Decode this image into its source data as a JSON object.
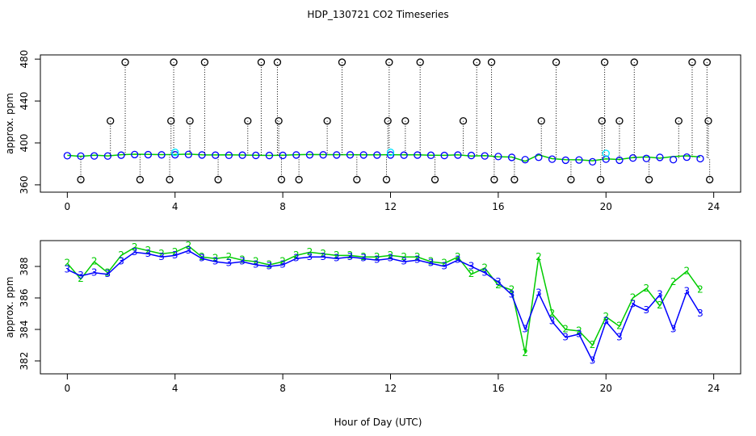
{
  "chart_data": [
    {
      "type": "scatter",
      "title": "HDP_130721  CO2 Timeseries",
      "ylabel": "approx. ppm",
      "xlim": [
        -1,
        25
      ],
      "ylim": [
        353,
        484
      ],
      "xticks": [
        0,
        4,
        8,
        12,
        16,
        20,
        24
      ],
      "yticks": [
        360,
        400,
        440,
        480
      ],
      "series": [
        {
          "color": "#00cc00",
          "lines": true,
          "x": [
            0,
            0.5,
            1,
            1.5,
            2,
            2.5,
            3,
            3.5,
            4,
            4.5,
            5,
            5.5,
            6,
            6.5,
            7,
            7.5,
            8,
            8.5,
            9,
            9.5,
            10,
            10.5,
            11,
            11.5,
            12,
            12.5,
            13,
            13.5,
            14,
            14.5,
            15,
            15.5,
            16,
            16.5,
            17,
            17.5,
            18,
            18.5,
            19,
            19.5,
            20,
            20.5,
            21,
            21.5,
            22,
            22.5,
            23,
            23.5
          ],
          "values": [
            388.2,
            387.2,
            388.3,
            387.6,
            388.7,
            389.2,
            389,
            388.8,
            388.9,
            389.3,
            388.6,
            388.5,
            388.6,
            388.4,
            388.3,
            388.1,
            388.3,
            388.7,
            388.9,
            388.8,
            388.7,
            388.7,
            388.6,
            388.6,
            388.7,
            388.6,
            388.6,
            388.3,
            388.2,
            388.6,
            387.5,
            387.9,
            386.8,
            386.5,
            382.5,
            388.6,
            385,
            384,
            383.9,
            383,
            384.8,
            384.2,
            386,
            386.6,
            385.5,
            387,
            387.7,
            386.5
          ]
        },
        {
          "color": "#0000ff",
          "marker": "circle",
          "x": [
            0,
            0.5,
            1,
            1.5,
            2,
            2.5,
            3,
            3.5,
            4,
            4.5,
            5,
            5.5,
            6,
            6.5,
            7,
            7.5,
            8,
            8.5,
            9,
            9.5,
            10,
            10.5,
            11,
            11.5,
            12,
            12.5,
            13,
            13.5,
            14,
            14.5,
            15,
            15.5,
            16,
            16.5,
            17,
            17.5,
            18,
            18.5,
            19,
            19.5,
            20,
            20.5,
            21,
            21.5,
            22,
            22.5,
            23,
            23.5
          ],
          "values": [
            387.8,
            387.4,
            387.6,
            387.5,
            388.3,
            388.9,
            388.8,
            388.6,
            388.7,
            389,
            388.5,
            388.3,
            388.2,
            388.3,
            388.1,
            388,
            388.1,
            388.5,
            388.6,
            388.6,
            388.5,
            388.6,
            388.5,
            388.4,
            388.5,
            388.3,
            388.4,
            388.2,
            388,
            388.4,
            388,
            387.6,
            387,
            386.2,
            384,
            386.3,
            384.5,
            383.5,
            383.7,
            382,
            384.5,
            383.5,
            385.6,
            385.2,
            386.2,
            384,
            386.4,
            385
          ]
        },
        {
          "color": "#000000",
          "marker": "circle",
          "droplines": true,
          "x": [
            0.5,
            1.6,
            2.15,
            2.7,
            3.8,
            3.85,
            3.95,
            4.55,
            5.1,
            5.6,
            6.7,
            7.2,
            7.8,
            7.85,
            7.95,
            8.6,
            9.65,
            10.2,
            10.75,
            11.85,
            11.9,
            11.95,
            12.55,
            13.1,
            13.65,
            14.7,
            15.2,
            15.75,
            15.85,
            16.6,
            17.6,
            18.15,
            18.7,
            19.8,
            19.85,
            19.95,
            20.5,
            21.05,
            21.6,
            22.7,
            23.2,
            23.75,
            23.8,
            23.85
          ],
          "values": [
            365,
            421,
            477,
            365,
            365,
            421,
            477,
            421,
            477,
            365,
            421,
            477,
            477,
            421,
            365,
            365,
            421,
            477,
            365,
            365,
            421,
            477,
            421,
            477,
            365,
            421,
            477,
            477,
            365,
            365,
            421,
            477,
            365,
            365,
            421,
            477,
            421,
            477,
            365,
            421,
            477,
            477,
            421,
            365
          ]
        },
        {
          "color": "#00e5ff",
          "marker": "circle",
          "x": [
            4,
            12,
            20
          ],
          "values": [
            391,
            391,
            390
          ]
        }
      ]
    },
    {
      "type": "scatter",
      "ylabel": "approx. ppm",
      "xlabel": "Hour of Day (UTC)",
      "xlim": [
        -1,
        25
      ],
      "ylim": [
        381.18,
        389.64
      ],
      "xticks": [
        0,
        4,
        8,
        12,
        16,
        20,
        24
      ],
      "yticks": [
        382,
        384,
        386,
        388
      ],
      "series": [
        {
          "color": "#00cc00",
          "lines": true,
          "marker": "2",
          "x": [
            0,
            0.5,
            1,
            1.5,
            2,
            2.5,
            3,
            3.5,
            4,
            4.5,
            5,
            5.5,
            6,
            6.5,
            7,
            7.5,
            8,
            8.5,
            9,
            9.5,
            10,
            10.5,
            11,
            11.5,
            12,
            12.5,
            13,
            13.5,
            14,
            14.5,
            15,
            15.5,
            16,
            16.5,
            17,
            17.5,
            18,
            18.5,
            19,
            19.5,
            20,
            20.5,
            21,
            21.5,
            22,
            22.5,
            23,
            23.5
          ],
          "values": [
            388.2,
            387.2,
            388.3,
            387.6,
            388.7,
            389.2,
            389,
            388.8,
            388.9,
            389.3,
            388.6,
            388.5,
            388.6,
            388.4,
            388.3,
            388.1,
            388.3,
            388.7,
            388.9,
            388.8,
            388.7,
            388.7,
            388.6,
            388.6,
            388.7,
            388.6,
            388.6,
            388.3,
            388.2,
            388.6,
            387.5,
            387.9,
            386.8,
            386.5,
            382.5,
            388.6,
            385,
            384,
            383.9,
            383,
            384.8,
            384.2,
            386,
            386.6,
            385.5,
            387,
            387.7,
            386.5
          ]
        },
        {
          "color": "#0000ff",
          "lines": true,
          "marker": "3",
          "x": [
            0,
            0.5,
            1,
            1.5,
            2,
            2.5,
            3,
            3.5,
            4,
            4.5,
            5,
            5.5,
            6,
            6.5,
            7,
            7.5,
            8,
            8.5,
            9,
            9.5,
            10,
            10.5,
            11,
            11.5,
            12,
            12.5,
            13,
            13.5,
            14,
            14.5,
            15,
            15.5,
            16,
            16.5,
            17,
            17.5,
            18,
            18.5,
            19,
            19.5,
            20,
            20.5,
            21,
            21.5,
            22,
            22.5,
            23,
            23.5
          ],
          "values": [
            387.8,
            387.4,
            387.6,
            387.5,
            388.3,
            388.9,
            388.8,
            388.6,
            388.7,
            389,
            388.5,
            388.3,
            388.2,
            388.3,
            388.1,
            388,
            388.1,
            388.5,
            388.6,
            388.6,
            388.5,
            388.6,
            388.5,
            388.4,
            388.5,
            388.3,
            388.4,
            388.2,
            388,
            388.4,
            388,
            387.6,
            387,
            386.2,
            384,
            386.3,
            384.5,
            383.5,
            383.7,
            382,
            384.5,
            383.5,
            385.6,
            385.2,
            386.2,
            384,
            386.4,
            385
          ]
        }
      ]
    }
  ]
}
